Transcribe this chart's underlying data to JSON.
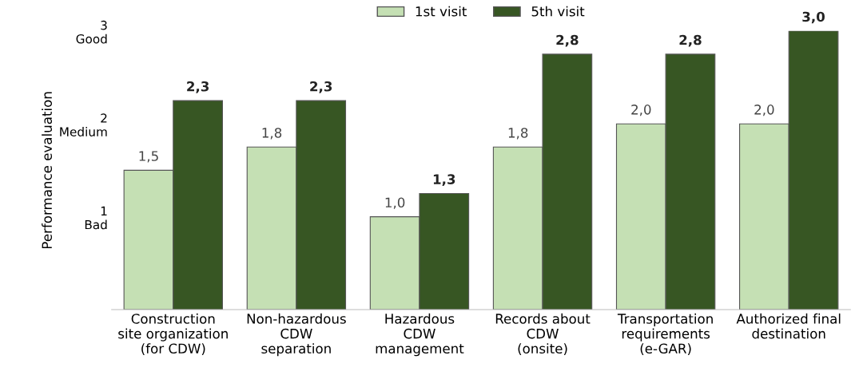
{
  "chart_data": {
    "type": "bar",
    "ylabel": "Performance evaluation",
    "categories": [
      "Construction\nsite organization\n(for CDW)",
      "Non-hazardous\nCDW\nseparation",
      "Hazardous\nCDW\nmanagement",
      "Records about\nCDW\n(onsite)",
      "Transportation\nrequirements\n(e-GAR)",
      "Authorized final\ndestination"
    ],
    "series": [
      {
        "name": "1st visit",
        "color": "#c5e0b4",
        "values": [
          1.5,
          1.75,
          1.0,
          1.75,
          2.0,
          2.0
        ],
        "value_labels": [
          "1,5",
          "1,8",
          "1,0",
          "1,8",
          "2,0",
          "2,0"
        ]
      },
      {
        "name": "5th visit",
        "color": "#375623",
        "values": [
          2.25,
          2.25,
          1.25,
          2.75,
          2.75,
          3.0
        ],
        "value_labels": [
          "2,3",
          "2,3",
          "1,3",
          "2,8",
          "2,8",
          "3,0"
        ]
      }
    ],
    "ylim": [
      0,
      3
    ],
    "yticks": [
      {
        "value": 1,
        "label": "1\nBad"
      },
      {
        "value": 2,
        "label": "2\nMedium"
      },
      {
        "value": 3,
        "label": "3\nGood"
      }
    ],
    "legend": "top",
    "grid": false
  }
}
